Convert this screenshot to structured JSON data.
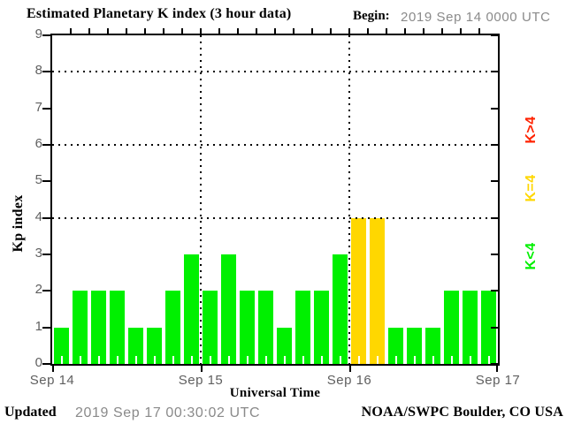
{
  "title": "Estimated Planetary K index (3 hour data)",
  "begin": {
    "label": "Begin:",
    "value": "2019 Sep 14 0000 UTC"
  },
  "axis": {
    "ylabel": "Kp index",
    "xlabel": "Universal Time"
  },
  "legend": {
    "items": [
      {
        "label": "K>4",
        "color": "#ff2200"
      },
      {
        "label": "K=4",
        "color": "#ffd700"
      },
      {
        "label": "K<4",
        "color": "#00f000"
      }
    ]
  },
  "footer": {
    "updated_label": "Updated",
    "updated_value": "2019 Sep 17 00:30:02 UTC",
    "credit": "NOAA/SWPC Boulder, CO USA"
  },
  "chart_data": {
    "type": "bar",
    "title": "Estimated Planetary K index (3 hour data)",
    "xlabel": "Universal Time",
    "ylabel": "Kp index",
    "ylim": [
      0,
      9
    ],
    "yticks": [
      0,
      1,
      2,
      3,
      4,
      5,
      6,
      7,
      8,
      9
    ],
    "grid_y_dotted": [
      4,
      6,
      8
    ],
    "day_labels": [
      "Sep 14",
      "Sep 15",
      "Sep 16",
      "Sep 17"
    ],
    "hours_per_bar": 3,
    "values": [
      1,
      2,
      2,
      2,
      1,
      1,
      2,
      3,
      2,
      3,
      2,
      2,
      1,
      2,
      2,
      3,
      4,
      4,
      1,
      1,
      1,
      2,
      2,
      2
    ],
    "bar_color_rule": {
      "below_4": "#00f000",
      "equal_4": "#ffd700",
      "above_4": "#ff2200"
    },
    "legend_position": "right",
    "grid": "dotted"
  },
  "colors": {
    "background": "#ffffff",
    "frame": "#000000",
    "axis_text": "#5f5f5f",
    "muted_text": "#8a8a8a"
  }
}
